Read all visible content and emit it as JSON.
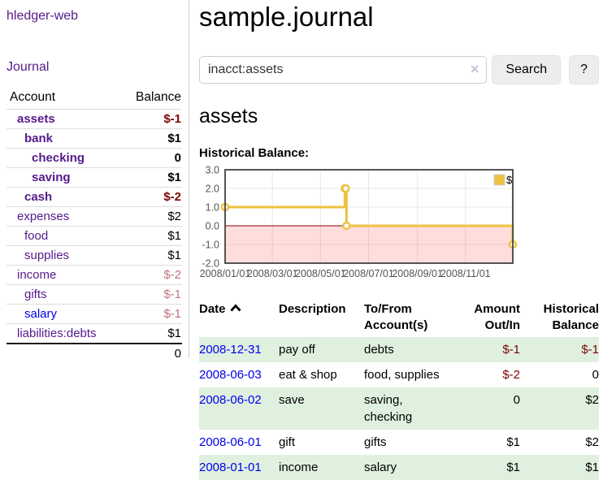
{
  "sidebar": {
    "app_title": "hledger-web",
    "nav": [
      {
        "label": "Journal"
      }
    ],
    "accounts_table": {
      "headers": {
        "account": "Account",
        "balance": "Balance"
      },
      "rows": [
        {
          "name": "assets",
          "level": 1,
          "bold": true,
          "balance": "$-1",
          "balance_color": "negative",
          "link_color": "purple"
        },
        {
          "name": "bank",
          "level": 2,
          "bold": true,
          "balance": "$1",
          "balance_color": "normal",
          "link_color": "purple"
        },
        {
          "name": "checking",
          "level": 3,
          "bold": true,
          "balance": "0",
          "balance_color": "normal",
          "link_color": "purple"
        },
        {
          "name": "saving",
          "level": 3,
          "bold": true,
          "balance": "$1",
          "balance_color": "normal",
          "link_color": "purple"
        },
        {
          "name": "cash",
          "level": 2,
          "bold": true,
          "balance": "$-2",
          "balance_color": "negative",
          "link_color": "purple"
        },
        {
          "name": "expenses",
          "level": 1,
          "bold": false,
          "balance": "$2",
          "balance_color": "normal",
          "link_color": "purple"
        },
        {
          "name": "food",
          "level": 2,
          "bold": false,
          "balance": "$1",
          "balance_color": "normal",
          "link_color": "purple"
        },
        {
          "name": "supplies",
          "level": 2,
          "bold": false,
          "balance": "$1",
          "balance_color": "normal",
          "link_color": "purple"
        },
        {
          "name": "income",
          "level": 1,
          "bold": false,
          "balance": "$-2",
          "balance_color": "muted-negative",
          "link_color": "purple"
        },
        {
          "name": "gifts",
          "level": 2,
          "bold": false,
          "balance": "$-1",
          "balance_color": "muted-negative",
          "link_color": "purple"
        },
        {
          "name": "salary",
          "level": 2,
          "bold": false,
          "balance": "$-1",
          "balance_color": "muted-negative",
          "link_color": "blue"
        },
        {
          "name": "liabilities:debts",
          "level": 1,
          "bold": false,
          "balance": "$1",
          "balance_color": "normal",
          "link_color": "purple"
        }
      ],
      "total": "0"
    }
  },
  "main": {
    "title": "sample.journal",
    "search": {
      "value": "inacct:assets",
      "clear_icon": "×",
      "search_button": "Search",
      "help_button": "?"
    },
    "account_heading": "assets",
    "chart_label": "Historical Balance:"
  },
  "chart_data": {
    "type": "line",
    "title": "Historical Balance of assets",
    "step": true,
    "series": [
      {
        "name": "$",
        "color": "#edc240",
        "points": [
          [
            "2008-01-01",
            1
          ],
          [
            "2008-06-01",
            2
          ],
          [
            "2008-06-02",
            2
          ],
          [
            "2008-06-03",
            0
          ],
          [
            "2008-12-31",
            -1
          ]
        ]
      }
    ],
    "x_range": [
      "2008-01-01",
      "2008-12-31"
    ],
    "y_range": [
      -2,
      3
    ],
    "x_ticks": [
      {
        "date": "2008-01-01",
        "label": "2008/01/01"
      },
      {
        "date": "2008-03-01",
        "label": "2008/03/01"
      },
      {
        "date": "2008-05-01",
        "label": "2008/05/01"
      },
      {
        "date": "2008-07-01",
        "label": "2008/07/01"
      },
      {
        "date": "2008-09-01",
        "label": "2008/09/01"
      },
      {
        "date": "2008-11-01",
        "label": "2008/11/01"
      }
    ],
    "y_ticks": [
      {
        "value": 3,
        "label": "3.0"
      },
      {
        "value": 2,
        "label": "2.0"
      },
      {
        "value": 1,
        "label": "1.0"
      },
      {
        "value": 0,
        "label": "0.0"
      },
      {
        "value": -1,
        "label": "-1.0"
      },
      {
        "value": -2,
        "label": "-2.0"
      }
    ],
    "grid": true,
    "legend_position": "top-right",
    "negative_region_color": "#ffdddd",
    "zero_line_color": "#8b0000",
    "border_color": "#545454",
    "tick_label_color": "#545454"
  },
  "register": {
    "headers": [
      "Date",
      "Description",
      "To/From\nAccount(s)",
      "Amount\nOut/In",
      "Historical\nBalance"
    ],
    "sort_column": "Date",
    "sort_direction": "ascending",
    "rows": [
      {
        "date": "2008-12-31",
        "description": "pay off",
        "to_from": "debts",
        "amount": "$-1",
        "amount_negative": true,
        "balance": "$-1",
        "balance_negative": true
      },
      {
        "date": "2008-06-03",
        "description": "eat & shop",
        "to_from": "food, supplies",
        "amount": "$-2",
        "amount_negative": true,
        "balance": "0",
        "balance_negative": false
      },
      {
        "date": "2008-06-02",
        "description": "save",
        "to_from": "saving,\nchecking",
        "amount": "0",
        "amount_negative": false,
        "balance": "$2",
        "balance_negative": false
      },
      {
        "date": "2008-06-01",
        "description": "gift",
        "to_from": "gifts",
        "amount": "$1",
        "amount_negative": false,
        "balance": "$2",
        "balance_negative": false
      },
      {
        "date": "2008-01-01",
        "description": "income",
        "to_from": "salary",
        "amount": "$1",
        "amount_negative": false,
        "balance": "$1",
        "balance_negative": false
      }
    ]
  },
  "colors": {
    "link_purple": "#551a8b",
    "link_blue": "#0000ee",
    "negative_red": "#800000",
    "muted_negative_rose": "#c0737d",
    "row_green": "#dff0df",
    "series_gold": "#edc240"
  }
}
